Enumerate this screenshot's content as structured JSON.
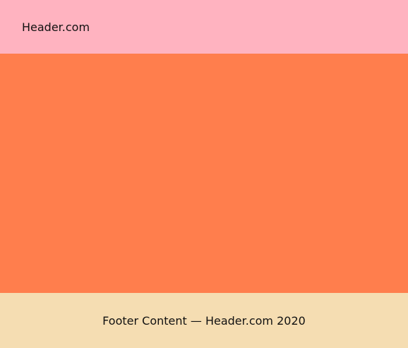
{
  "header": {
    "title": "Header.com",
    "background": "#ffb3c0"
  },
  "main": {
    "background": "#ff7e4d"
  },
  "footer": {
    "text": "Footer Content — Header.com 2020",
    "background": "#f5ddb2"
  }
}
